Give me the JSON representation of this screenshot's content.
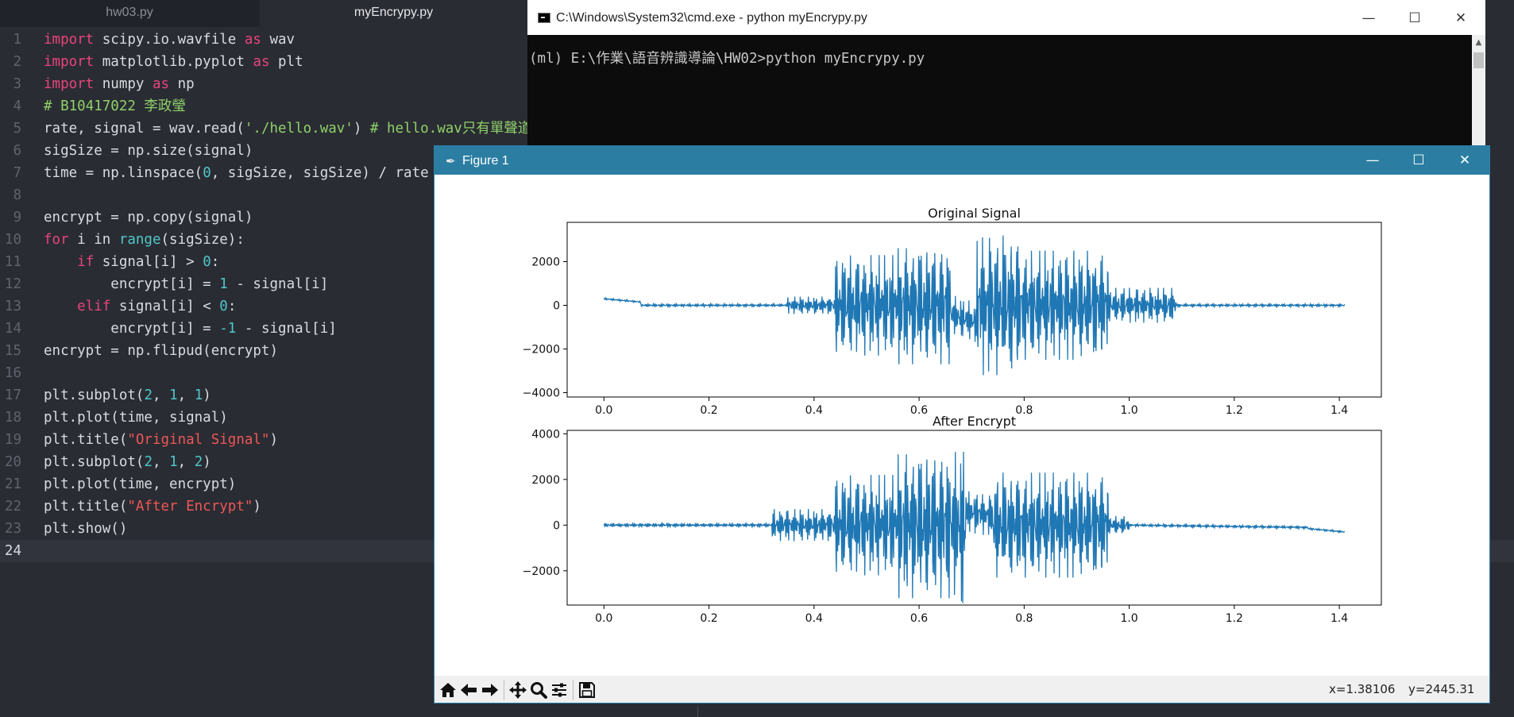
{
  "editor": {
    "tabs": [
      {
        "label": "hw03.py",
        "active": false
      },
      {
        "label": "myEncrypy.py",
        "active": true
      }
    ],
    "current_line": 24,
    "lines": [
      [
        {
          "t": "kw",
          "v": "import"
        },
        {
          "t": "",
          "v": " scipy.io.wavfile "
        },
        {
          "t": "kw",
          "v": "as"
        },
        {
          "t": "",
          "v": " wav"
        }
      ],
      [
        {
          "t": "kw",
          "v": "import"
        },
        {
          "t": "",
          "v": " matplotlib.pyplot "
        },
        {
          "t": "kw",
          "v": "as"
        },
        {
          "t": "",
          "v": " plt"
        }
      ],
      [
        {
          "t": "kw",
          "v": "import"
        },
        {
          "t": "",
          "v": " numpy "
        },
        {
          "t": "kw",
          "v": "as"
        },
        {
          "t": "",
          "v": " np"
        }
      ],
      [
        {
          "t": "com",
          "v": "# B10417022 李政瑩"
        }
      ],
      [
        {
          "t": "",
          "v": "rate, signal = wav.read("
        },
        {
          "t": "strg",
          "v": "'./hello.wav'"
        },
        {
          "t": "",
          "v": ") "
        },
        {
          "t": "com",
          "v": "# hello.wav只有單聲道"
        }
      ],
      [
        {
          "t": "",
          "v": "sigSize = np.size(signal)"
        }
      ],
      [
        {
          "t": "",
          "v": "time = np.linspace("
        },
        {
          "t": "num",
          "v": "0"
        },
        {
          "t": "",
          "v": ", sigSize, sigSize) / rate"
        }
      ],
      [],
      [
        {
          "t": "",
          "v": "encrypt = np.copy(signal)"
        }
      ],
      [
        {
          "t": "kw",
          "v": "for"
        },
        {
          "t": "",
          "v": " i in "
        },
        {
          "t": "fn",
          "v": "range"
        },
        {
          "t": "",
          "v": "(sigSize):"
        }
      ],
      [
        {
          "t": "",
          "v": "    "
        },
        {
          "t": "kw",
          "v": "if"
        },
        {
          "t": "",
          "v": " signal[i] > "
        },
        {
          "t": "num",
          "v": "0"
        },
        {
          "t": "",
          "v": ":"
        }
      ],
      [
        {
          "t": "",
          "v": "        encrypt[i] = "
        },
        {
          "t": "num",
          "v": "1"
        },
        {
          "t": "",
          "v": " - signal[i]"
        }
      ],
      [
        {
          "t": "",
          "v": "    "
        },
        {
          "t": "kw",
          "v": "elif"
        },
        {
          "t": "",
          "v": " signal[i] < "
        },
        {
          "t": "num",
          "v": "0"
        },
        {
          "t": "",
          "v": ":"
        }
      ],
      [
        {
          "t": "",
          "v": "        encrypt[i] = "
        },
        {
          "t": "num",
          "v": "-1"
        },
        {
          "t": "",
          "v": " - signal[i]"
        }
      ],
      [
        {
          "t": "",
          "v": "encrypt = np.flipud(encrypt)"
        }
      ],
      [],
      [
        {
          "t": "",
          "v": "plt.subplot("
        },
        {
          "t": "num",
          "v": "2"
        },
        {
          "t": "",
          "v": ", "
        },
        {
          "t": "num",
          "v": "1"
        },
        {
          "t": "",
          "v": ", "
        },
        {
          "t": "num",
          "v": "1"
        },
        {
          "t": "",
          "v": ")"
        }
      ],
      [
        {
          "t": "",
          "v": "plt.plot(time, signal)"
        }
      ],
      [
        {
          "t": "",
          "v": "plt.title("
        },
        {
          "t": "str",
          "v": "\"Original Signal\""
        },
        {
          "t": "",
          "v": ")"
        }
      ],
      [
        {
          "t": "",
          "v": "plt.subplot("
        },
        {
          "t": "num",
          "v": "2"
        },
        {
          "t": "",
          "v": ", "
        },
        {
          "t": "num",
          "v": "1"
        },
        {
          "t": "",
          "v": ", "
        },
        {
          "t": "num",
          "v": "2"
        },
        {
          "t": "",
          "v": ")"
        }
      ],
      [
        {
          "t": "",
          "v": "plt.plot(time, encrypt)"
        }
      ],
      [
        {
          "t": "",
          "v": "plt.title("
        },
        {
          "t": "str",
          "v": "\"After Encrypt\""
        },
        {
          "t": "",
          "v": ")"
        }
      ],
      [
        {
          "t": "",
          "v": "plt.show()"
        }
      ],
      []
    ]
  },
  "cmd": {
    "title": "C:\\Windows\\System32\\cmd.exe - python  myEncrypy.py",
    "prompt_line": "(ml) E:\\作業\\語音辨識導論\\HW02>python myEncrypy.py",
    "minimize_glyph": "—",
    "maximize_glyph": "☐",
    "close_glyph": "✕"
  },
  "figure": {
    "title": "Figure 1",
    "minimize_glyph": "—",
    "maximize_glyph": "☐",
    "close_glyph": "✕",
    "coords": {
      "x": "x=1.38106",
      "y": "y=2445.31"
    },
    "toolbar": [
      "home-icon",
      "back-arrow-icon",
      "forward-arrow-icon",
      "pan-icon",
      "zoom-icon",
      "configure-subplots-icon",
      "save-icon"
    ],
    "line_color": "#1f77b4"
  },
  "chart_data": [
    {
      "type": "line",
      "title": "Original Signal",
      "xlim": [
        -0.07,
        1.48
      ],
      "ylim": [
        -4200,
        3800
      ],
      "xticks": [
        0.0,
        0.2,
        0.4,
        0.6,
        0.8,
        1.0,
        1.2,
        1.4
      ],
      "xtick_labels": [
        "0.0",
        "0.2",
        "0.4",
        "0.6",
        "0.8",
        "1.0",
        "1.2",
        "1.4"
      ],
      "yticks": [
        -4000,
        -2000,
        0,
        2000
      ],
      "ytick_labels": [
        "−4000",
        "−2000",
        "0",
        "2000"
      ],
      "x_end": 1.41,
      "segments": [
        {
          "x0": 0.0,
          "x1": 0.07,
          "v0": 300,
          "v1": 150,
          "amp": 40
        },
        {
          "x0": 0.07,
          "x1": 0.35,
          "v0": 0,
          "v1": 0,
          "amp": 60
        },
        {
          "x0": 0.35,
          "x1": 0.44,
          "v0": 0,
          "v1": 0,
          "amp": 400
        },
        {
          "x0": 0.44,
          "x1": 0.56,
          "v0": 0,
          "v1": 0,
          "amp": 2300
        },
        {
          "x0": 0.56,
          "x1": 0.66,
          "v0": 0,
          "v1": 0,
          "amp": 2700
        },
        {
          "x0": 0.66,
          "x1": 0.71,
          "v0": -400,
          "v1": -800,
          "amp": 900
        },
        {
          "x0": 0.71,
          "x1": 0.72,
          "v0": 0,
          "v1": 0,
          "amp": 3300
        },
        {
          "x0": 0.72,
          "x1": 0.79,
          "v0": 0,
          "v1": 0,
          "amp": 3200
        },
        {
          "x0": 0.79,
          "x1": 0.96,
          "v0": 0,
          "v1": 0,
          "amp": 2500
        },
        {
          "x0": 0.96,
          "x1": 1.09,
          "v0": 0,
          "v1": 0,
          "amp": 800
        },
        {
          "x0": 1.09,
          "x1": 1.41,
          "v0": 0,
          "v1": 0,
          "amp": 60
        }
      ]
    },
    {
      "type": "line",
      "title": "After Encrypt",
      "xlim": [
        -0.07,
        1.48
      ],
      "ylim": [
        -3500,
        4150
      ],
      "xticks": [
        0.0,
        0.2,
        0.4,
        0.6,
        0.8,
        1.0,
        1.2,
        1.4
      ],
      "xtick_labels": [
        "0.0",
        "0.2",
        "0.4",
        "0.6",
        "0.8",
        "1.0",
        "1.2",
        "1.4"
      ],
      "yticks": [
        -2000,
        0,
        2000,
        4000
      ],
      "ytick_labels": [
        "−2000",
        "0",
        "2000",
        "4000"
      ],
      "x_end": 1.41,
      "segments": [
        {
          "x0": 0.0,
          "x1": 0.32,
          "v0": 0,
          "v1": 0,
          "amp": 80
        },
        {
          "x0": 0.32,
          "x1": 0.44,
          "v0": 0,
          "v1": 0,
          "amp": 700
        },
        {
          "x0": 0.44,
          "x1": 0.56,
          "v0": 0,
          "v1": 0,
          "amp": 2200
        },
        {
          "x0": 0.56,
          "x1": 0.68,
          "v0": 0,
          "v1": 0,
          "amp": 3200
        },
        {
          "x0": 0.68,
          "x1": 0.69,
          "v0": 0,
          "v1": 0,
          "amp": 3700
        },
        {
          "x0": 0.69,
          "x1": 0.74,
          "v0": 600,
          "v1": 400,
          "amp": 900
        },
        {
          "x0": 0.74,
          "x1": 0.96,
          "v0": 0,
          "v1": 0,
          "amp": 2300
        },
        {
          "x0": 0.96,
          "x1": 1.0,
          "v0": 0,
          "v1": 0,
          "amp": 400
        },
        {
          "x0": 1.0,
          "x1": 1.34,
          "v0": 0,
          "v1": -100,
          "amp": 60
        },
        {
          "x0": 1.34,
          "x1": 1.41,
          "v0": -150,
          "v1": -300,
          "amp": 40
        }
      ]
    }
  ]
}
